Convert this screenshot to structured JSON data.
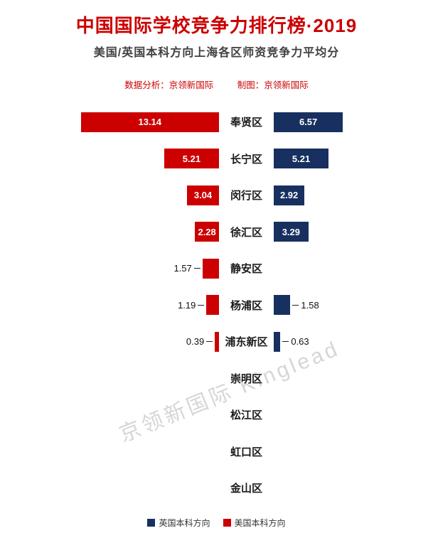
{
  "chart_data": {
    "type": "bar",
    "variant": "diverging-horizontal",
    "title": "中国国际学校竞争力排行榜·2019",
    "subtitle": "美国/英国本科方向上海各区师资竞争力平均分",
    "categories": [
      "奉贤区",
      "长宁区",
      "闵行区",
      "徐汇区",
      "静安区",
      "杨浦区",
      "浦东新区",
      "崇明区",
      "松江区",
      "虹口区",
      "金山区"
    ],
    "series": [
      {
        "name": "美国本科方向",
        "side": "left",
        "color": "#cc0000",
        "values": [
          13.14,
          5.21,
          3.04,
          2.28,
          1.57,
          1.19,
          0.39,
          null,
          null,
          null,
          null
        ]
      },
      {
        "name": "英国本科方向",
        "side": "right",
        "color": "#17305f",
        "values": [
          6.57,
          5.21,
          2.92,
          3.29,
          null,
          1.58,
          0.63,
          null,
          null,
          null,
          null
        ]
      }
    ],
    "xlim": [
      0,
      13.5
    ],
    "value_label_inside_threshold": 2,
    "legend_position": "bottom",
    "grid": false
  },
  "attribution": {
    "analysis": "数据分析：京领新国际",
    "chart": "制图：京领新国际"
  },
  "watermark": {
    "text": "京领新国际 Kinglead"
  },
  "legend": [
    {
      "label": "英国本科方向",
      "color": "#17305f"
    },
    {
      "label": "美国本科方向",
      "color": "#cc0000"
    }
  ],
  "colors": {
    "title": "#cc0000",
    "subtitle": "#404040",
    "attribution": "#cc0000",
    "us_bar": "#cc0000",
    "uk_bar": "#17305f",
    "value_label_inside": "#ffffff",
    "value_label_outside": "#111111",
    "watermark": "#a5a5a5"
  }
}
